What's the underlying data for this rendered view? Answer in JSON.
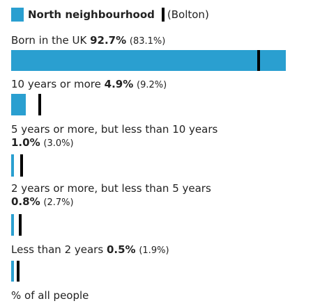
{
  "legend": {
    "area_name": "North neighbourhood",
    "comparison_name": "(Bolton)",
    "area_color": "#2a9fd0",
    "comparison_color": "#000000"
  },
  "chart_data": {
    "type": "bar",
    "orientation": "horizontal",
    "unit": "% of all people",
    "xlim": [
      0,
      100
    ],
    "series": [
      {
        "name": "North neighbourhood",
        "color": "#2a9fd0"
      },
      {
        "name": "Bolton",
        "color": "#000000"
      }
    ],
    "categories": [
      {
        "label": "Born in the UK",
        "value_text": "92.7%",
        "comparison_text": "(83.1%)",
        "value": 92.7,
        "comparison": 83.1
      },
      {
        "label": "10 years or more",
        "value_text": "4.9%",
        "comparison_text": "(9.2%)",
        "value": 4.9,
        "comparison": 9.2
      },
      {
        "label": "5 years or more, but less than 10 years",
        "value_text": "1.0%",
        "comparison_text": "(3.0%)",
        "value": 1.0,
        "comparison": 3.0
      },
      {
        "label": "2 years or more, but less than 5 years",
        "value_text": "0.8%",
        "comparison_text": "(2.7%)",
        "value": 0.8,
        "comparison": 2.7
      },
      {
        "label": "Less than 2 years",
        "value_text": "0.5%",
        "comparison_text": "(1.9%)",
        "value": 0.5,
        "comparison": 1.9
      }
    ]
  },
  "footer": "% of all people"
}
